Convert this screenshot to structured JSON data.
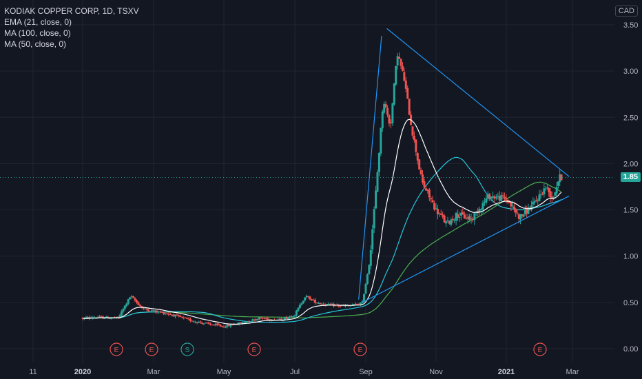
{
  "legend": {
    "title": "KODIAK COPPER CORP, 1D, TSXV",
    "ema21": "EMA (21, close, 0)",
    "ma100": "MA (100, close, 0)",
    "ma50": "MA (50, close, 0)"
  },
  "currency": "CAD",
  "last_price_label": "1.85",
  "colors": {
    "background": "#131722",
    "up": "#26a69a",
    "down": "#ef5350",
    "ema21": "#ffffff",
    "ma100": "#4caf50",
    "ma50": "#26c6da",
    "trendline": "#2196f3",
    "grid": "#1f2430"
  },
  "chart_data": {
    "type": "candlestick",
    "y_ticks": [
      "0.00",
      "0.50",
      "1.00",
      "1.50",
      "2.00",
      "2.50",
      "3.00",
      "3.50"
    ],
    "ylim": [
      -0.08,
      3.6
    ],
    "x_ticks": [
      {
        "label": "11",
        "bold": false
      },
      {
        "label": "2020",
        "bold": true
      },
      {
        "label": "Mar",
        "bold": false
      },
      {
        "label": "May",
        "bold": false
      },
      {
        "label": "Jul",
        "bold": false
      },
      {
        "label": "Sep",
        "bold": false
      },
      {
        "label": "Nov",
        "bold": false
      },
      {
        "label": "2021",
        "bold": true
      },
      {
        "label": "Mar",
        "bold": false
      }
    ],
    "last_price": 1.85,
    "events": [
      {
        "label": "E",
        "color": "#ef5350"
      },
      {
        "label": "E",
        "color": "#ef5350"
      },
      {
        "label": "S",
        "color": "#26a69a"
      },
      {
        "label": "E",
        "color": "#ef5350"
      },
      {
        "label": "E",
        "color": "#ef5350"
      },
      {
        "label": "E",
        "color": "#ef5350"
      }
    ],
    "price_path": [
      {
        "m": 0,
        "v": 0.33
      },
      {
        "m": 0.4,
        "v": 0.34
      },
      {
        "m": 1,
        "v": 0.33
      },
      {
        "m": 1.35,
        "v": 0.57
      },
      {
        "m": 1.7,
        "v": 0.43
      },
      {
        "m": 2.5,
        "v": 0.37
      },
      {
        "m": 3,
        "v": 0.31
      },
      {
        "m": 3.5,
        "v": 0.27
      },
      {
        "m": 4,
        "v": 0.24
      },
      {
        "m": 4.5,
        "v": 0.28
      },
      {
        "m": 5,
        "v": 0.33
      },
      {
        "m": 5.6,
        "v": 0.31
      },
      {
        "m": 6,
        "v": 0.37
      },
      {
        "m": 6.3,
        "v": 0.57
      },
      {
        "m": 6.6,
        "v": 0.5
      },
      {
        "m": 7,
        "v": 0.47
      },
      {
        "m": 7.5,
        "v": 0.46
      },
      {
        "m": 7.9,
        "v": 0.49
      },
      {
        "m": 8.1,
        "v": 0.92
      },
      {
        "m": 8.3,
        "v": 1.75
      },
      {
        "m": 8.5,
        "v": 2.7
      },
      {
        "m": 8.7,
        "v": 2.4
      },
      {
        "m": 8.9,
        "v": 3.2
      },
      {
        "m": 9.1,
        "v": 2.9
      },
      {
        "m": 9.3,
        "v": 2.4
      },
      {
        "m": 9.6,
        "v": 1.8
      },
      {
        "m": 10,
        "v": 1.5
      },
      {
        "m": 10.3,
        "v": 1.35
      },
      {
        "m": 10.6,
        "v": 1.45
      },
      {
        "m": 11,
        "v": 1.4
      },
      {
        "m": 11.5,
        "v": 1.65
      },
      {
        "m": 12,
        "v": 1.62
      },
      {
        "m": 12.4,
        "v": 1.42
      },
      {
        "m": 12.8,
        "v": 1.55
      },
      {
        "m": 13.2,
        "v": 1.75
      },
      {
        "m": 13.4,
        "v": 1.62
      },
      {
        "m": 13.6,
        "v": 1.85
      }
    ],
    "trendlines": [
      {
        "points": [
          {
            "m": 7.8,
            "v": 0.53
          },
          {
            "m": 8.45,
            "v": 3.38
          }
        ]
      },
      {
        "points": [
          {
            "m": 8.6,
            "v": 3.46
          },
          {
            "m": 13.9,
            "v": 1.86
          }
        ]
      },
      {
        "points": [
          {
            "m": 7.9,
            "v": 0.5
          },
          {
            "m": 13.9,
            "v": 1.65
          }
        ]
      }
    ]
  }
}
